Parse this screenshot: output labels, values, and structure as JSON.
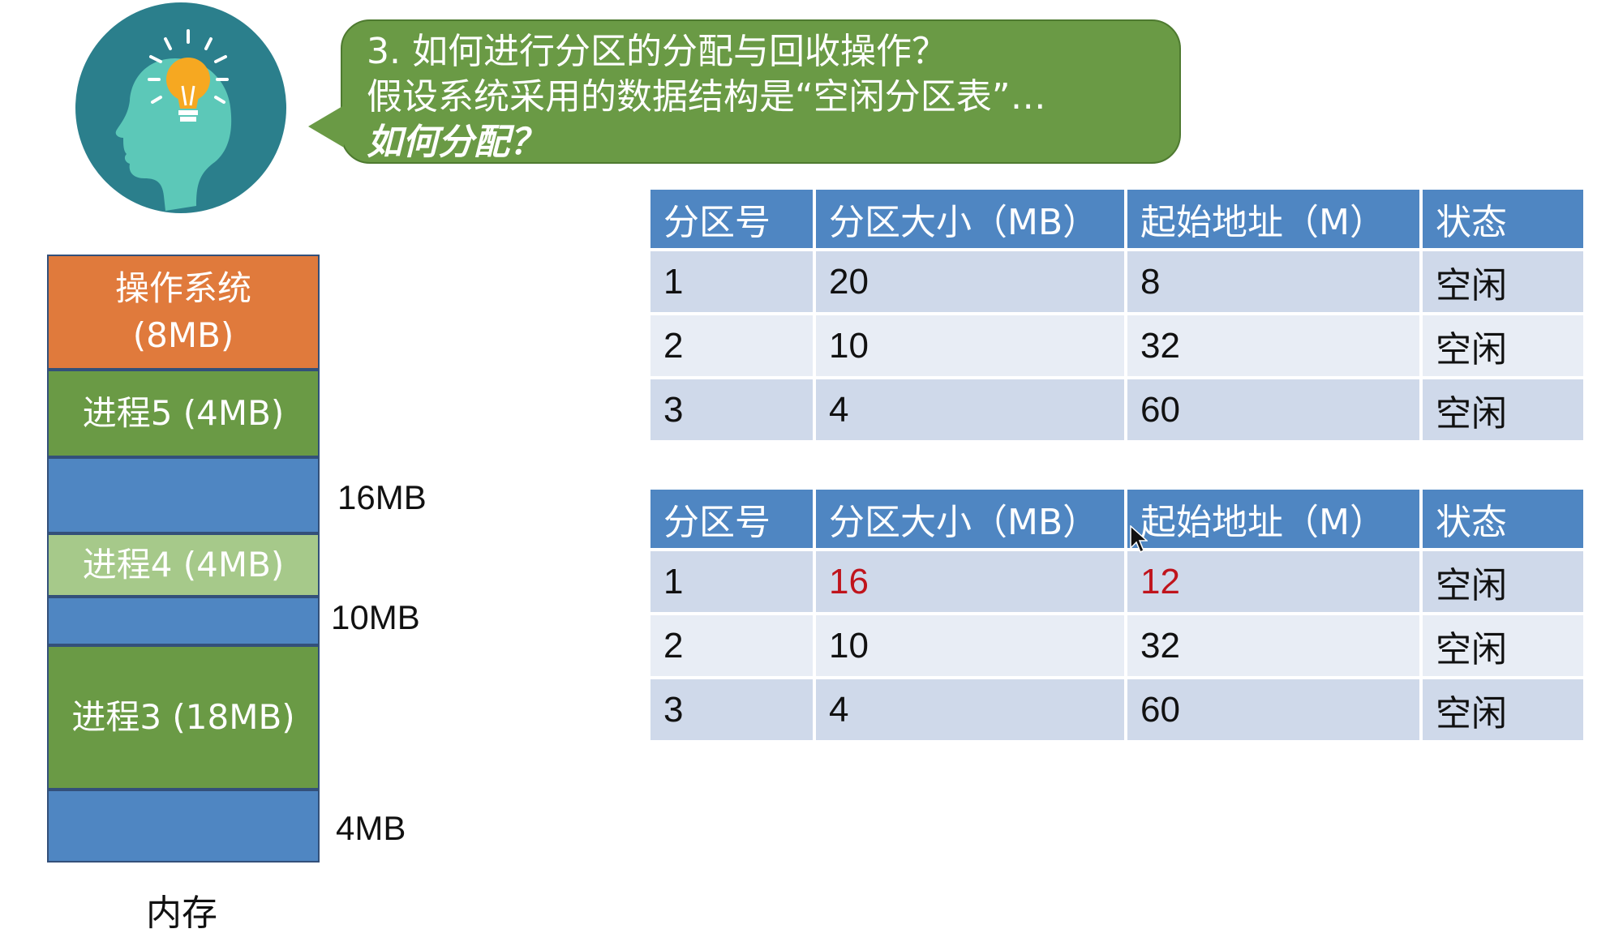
{
  "question": {
    "line1": "3. 如何进行分区的分配与回收操作？",
    "line2": "假设系统采用的数据结构是“空闲分区表”…",
    "line3": "如何分配？"
  },
  "memory": {
    "blocks": [
      {
        "label": "操作系统\n(8MB)",
        "kind": "os",
        "color": "#e07a3c"
      },
      {
        "label": "进程5 (4MB)",
        "kind": "process",
        "color": "#6a9a45"
      },
      {
        "label": "",
        "kind": "free",
        "color": "#4f86c2"
      },
      {
        "label": "进程4 (4MB)",
        "kind": "process-light",
        "color": "#a6c98a"
      },
      {
        "label": "",
        "kind": "free",
        "color": "#4f86c2"
      },
      {
        "label": "进程3 (18MB)",
        "kind": "process",
        "color": "#6a9a45"
      },
      {
        "label": "",
        "kind": "free",
        "color": "#4f86c2"
      }
    ],
    "free_labels": [
      "16MB",
      "10MB",
      "4MB"
    ],
    "caption": "内存"
  },
  "tables": [
    {
      "headers": [
        "分区号",
        "分区大小（MB）",
        "起始地址（M）",
        "状态"
      ],
      "rows": [
        [
          "1",
          "20",
          "8",
          "空闲"
        ],
        [
          "2",
          "10",
          "32",
          "空闲"
        ],
        [
          "3",
          "4",
          "60",
          "空闲"
        ]
      ]
    },
    {
      "headers": [
        "分区号",
        "分区大小（MB）",
        "起始地址（M）",
        "状态"
      ],
      "rows": [
        [
          "1",
          "16",
          "12",
          "空闲"
        ],
        [
          "2",
          "10",
          "32",
          "空闲"
        ],
        [
          "3",
          "4",
          "60",
          "空闲"
        ]
      ],
      "highlight_color": "#c0141c"
    }
  ]
}
